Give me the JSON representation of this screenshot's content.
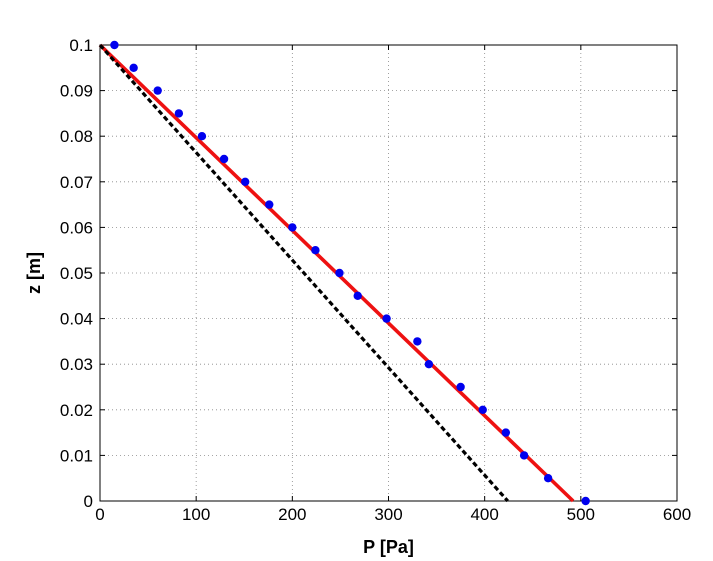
{
  "chart_data": {
    "type": "scatter",
    "title": "",
    "xlabel": "P [Pa]",
    "ylabel": "z [m]",
    "xlim": [
      0,
      600
    ],
    "ylim": [
      0,
      0.1
    ],
    "xticks": [
      0,
      100,
      200,
      300,
      400,
      500,
      600
    ],
    "xtick_labels": [
      "0",
      "100",
      "200",
      "300",
      "400",
      "500",
      "600"
    ],
    "yticks": [
      0,
      0.01,
      0.02,
      0.03,
      0.04,
      0.05,
      0.06,
      0.07,
      0.08,
      0.09,
      0.1
    ],
    "ytick_labels": [
      "0",
      "0.01",
      "0.02",
      "0.03",
      "0.04",
      "0.05",
      "0.06",
      "0.07",
      "0.08",
      "0.09",
      "0.1"
    ],
    "grid": true,
    "grid_style": "dotted",
    "series": [
      {
        "style": "markers",
        "color": "#0000ee",
        "x": [
          15,
          35,
          60,
          82,
          106,
          129,
          151,
          176,
          200,
          224,
          249,
          268,
          298,
          330,
          342,
          375,
          398,
          422,
          441,
          466,
          505
        ],
        "y": [
          0.1,
          0.095,
          0.09,
          0.085,
          0.08,
          0.075,
          0.07,
          0.065,
          0.06,
          0.055,
          0.05,
          0.045,
          0.04,
          0.035,
          0.03,
          0.025,
          0.02,
          0.015,
          0.01,
          0.005,
          0
        ]
      },
      {
        "style": "solid-line",
        "color": "#ee1111",
        "x": [
          0,
          492
        ],
        "y": [
          0.1,
          0
        ]
      },
      {
        "style": "dashed-line",
        "color": "#000000",
        "x": [
          0,
          424
        ],
        "y": [
          0.1,
          0
        ]
      }
    ]
  }
}
